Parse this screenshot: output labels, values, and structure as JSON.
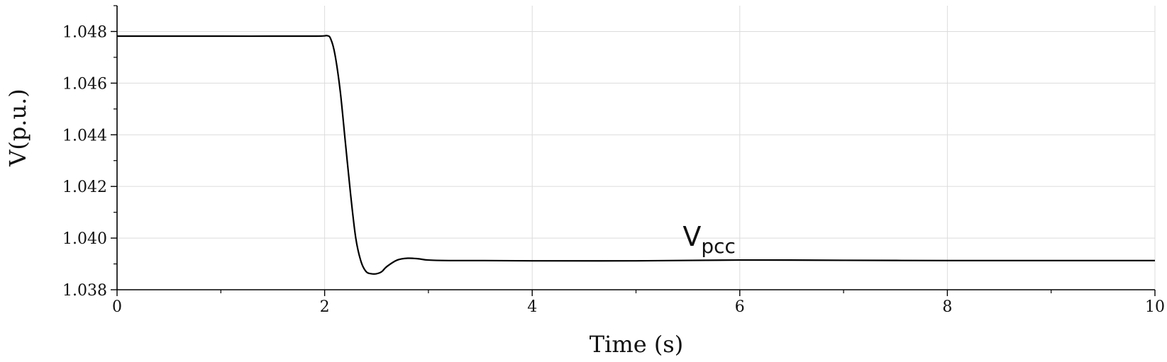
{
  "chart_data": {
    "type": "line",
    "xlabel": "Time (s)",
    "ylabel": "V(p.u.)",
    "xlim": [
      0,
      10
    ],
    "ylim": [
      1.038,
      1.049
    ],
    "x_ticks": [
      0,
      2,
      4,
      6,
      8,
      10
    ],
    "x_tick_labels": [
      "0",
      "2",
      "4",
      "6",
      "8",
      "10"
    ],
    "y_ticks": [
      1.038,
      1.04,
      1.042,
      1.044,
      1.046,
      1.048
    ],
    "y_tick_labels": [
      "1.038",
      "1.040",
      "1.042",
      "1.044",
      "1.046",
      "1.048"
    ],
    "grid": true,
    "line_color": "#000000",
    "annotation": {
      "base": "V",
      "sub": "pcc",
      "x": 5.45,
      "y": 1.0397
    },
    "series": [
      {
        "x": [
          0,
          1.0,
          1.9,
          2.02,
          2.06,
          2.1,
          2.15,
          2.2,
          2.25,
          2.3,
          2.35,
          2.4,
          2.45,
          2.5,
          2.55,
          2.6,
          2.7,
          2.8,
          2.9,
          3.0,
          3.2,
          3.5,
          4.0,
          5.0,
          6.0,
          7.0,
          8.0,
          9.0,
          10.0
        ],
        "y": [
          1.04782,
          1.04782,
          1.04782,
          1.04784,
          1.0477,
          1.0471,
          1.0457,
          1.0437,
          1.0417,
          1.04,
          1.0391,
          1.0387,
          1.03862,
          1.03862,
          1.0387,
          1.0389,
          1.03915,
          1.03922,
          1.0392,
          1.03915,
          1.03913,
          1.03913,
          1.03912,
          1.03912,
          1.03915,
          1.03914,
          1.03913,
          1.03913,
          1.03913
        ]
      }
    ]
  }
}
